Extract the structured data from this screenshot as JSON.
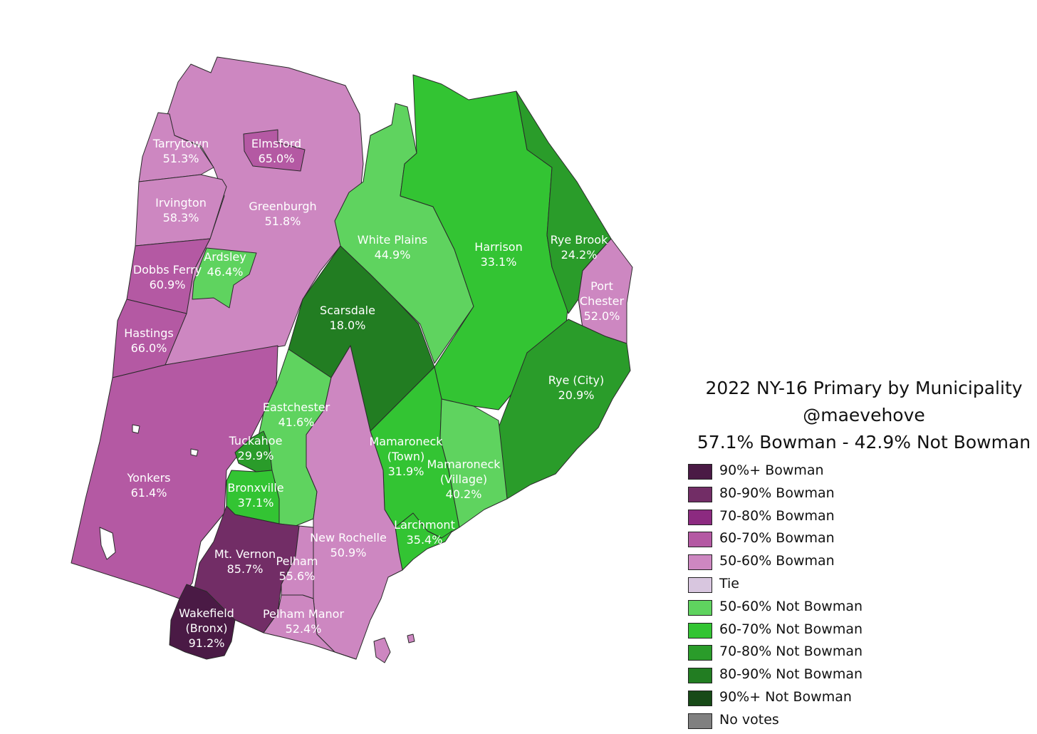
{
  "legend": {
    "title": "2022 NY-16 Primary by Municipality",
    "author": "@maevehove",
    "summary": "57.1% Bowman - 42.9% Not Bowman",
    "items": [
      {
        "label": "90%+ Bowman",
        "color": "#4a1a45"
      },
      {
        "label": "80-90% Bowman",
        "color": "#722d66"
      },
      {
        "label": "70-80% Bowman",
        "color": "#8c2a80"
      },
      {
        "label": "60-70% Bowman",
        "color": "#b459a3"
      },
      {
        "label": "50-60% Bowman",
        "color": "#cd87c1"
      },
      {
        "label": "Tie",
        "color": "#d8c6df"
      },
      {
        "label": "50-60% Not Bowman",
        "color": "#5fd35f"
      },
      {
        "label": "60-70% Not Bowman",
        "color": "#33c433"
      },
      {
        "label": "70-80% Not Bowman",
        "color": "#2a9c2a"
      },
      {
        "label": "80-90% Not Bowman",
        "color": "#227d22"
      },
      {
        "label": "90%+ Not Bowman",
        "color": "#174a17"
      },
      {
        "label": "No votes",
        "color": "#808080"
      }
    ]
  },
  "municipalities": [
    {
      "id": "tarrytown",
      "name": "Tarrytown",
      "value": "51.3%",
      "color": "#cd87c1"
    },
    {
      "id": "elmsford",
      "name": "Elmsford",
      "value": "65.0%",
      "color": "#b459a3"
    },
    {
      "id": "irvington",
      "name": "Irvington",
      "value": "58.3%",
      "color": "#cd87c1"
    },
    {
      "id": "greenburgh",
      "name": "Greenburgh",
      "value": "51.8%",
      "color": "#cd87c1"
    },
    {
      "id": "ardsley",
      "name": "Ardsley",
      "value": "46.4%",
      "color": "#5fd35f"
    },
    {
      "id": "dobbs-ferry",
      "name": "Dobbs Ferry",
      "value": "60.9%",
      "color": "#b459a3"
    },
    {
      "id": "hastings",
      "name": "Hastings",
      "value": "66.0%",
      "color": "#b459a3"
    },
    {
      "id": "white-plains",
      "name": "White Plains",
      "value": "44.9%",
      "color": "#5fd35f"
    },
    {
      "id": "harrison",
      "name": "Harrison",
      "value": "33.1%",
      "color": "#33c433"
    },
    {
      "id": "rye-brook",
      "name": "Rye Brook",
      "value": "24.2%",
      "color": "#2a9c2a"
    },
    {
      "id": "port-chester",
      "name": "Port Chester",
      "value": "52.0%",
      "color": "#cd87c1"
    },
    {
      "id": "scarsdale",
      "name": "Scarsdale",
      "value": "18.0%",
      "color": "#227d22"
    },
    {
      "id": "rye-city",
      "name": "Rye (City)",
      "value": "20.9%",
      "color": "#2a9c2a"
    },
    {
      "id": "eastchester",
      "name": "Eastchester",
      "value": "41.6%",
      "color": "#5fd35f"
    },
    {
      "id": "tuckahoe",
      "name": "Tuckahoe",
      "value": "29.9%",
      "color": "#2a9c2a"
    },
    {
      "id": "mamaroneck-town",
      "name": "Mamaroneck (Town)",
      "value": "31.9%",
      "color": "#33c433"
    },
    {
      "id": "mamaroneck-village",
      "name": "Mamaroneck (Village)",
      "value": "40.2%",
      "color": "#5fd35f"
    },
    {
      "id": "yonkers",
      "name": "Yonkers",
      "value": "61.4%",
      "color": "#b459a3"
    },
    {
      "id": "bronxville",
      "name": "Bronxville",
      "value": "37.1%",
      "color": "#33c433"
    },
    {
      "id": "larchmont",
      "name": "Larchmont",
      "value": "35.4%",
      "color": "#33c433"
    },
    {
      "id": "new-rochelle",
      "name": "New Rochelle",
      "value": "50.9%",
      "color": "#cd87c1"
    },
    {
      "id": "mt-vernon",
      "name": "Mt. Vernon",
      "value": "85.7%",
      "color": "#722d66"
    },
    {
      "id": "pelham",
      "name": "Pelham",
      "value": "55.6%",
      "color": "#cd87c1"
    },
    {
      "id": "pelham-manor",
      "name": "Pelham Manor",
      "value": "52.4%",
      "color": "#cd87c1"
    },
    {
      "id": "wakefield",
      "name": "Wakefield (Bronx)",
      "value": "91.2%",
      "color": "#4a1a45"
    }
  ]
}
